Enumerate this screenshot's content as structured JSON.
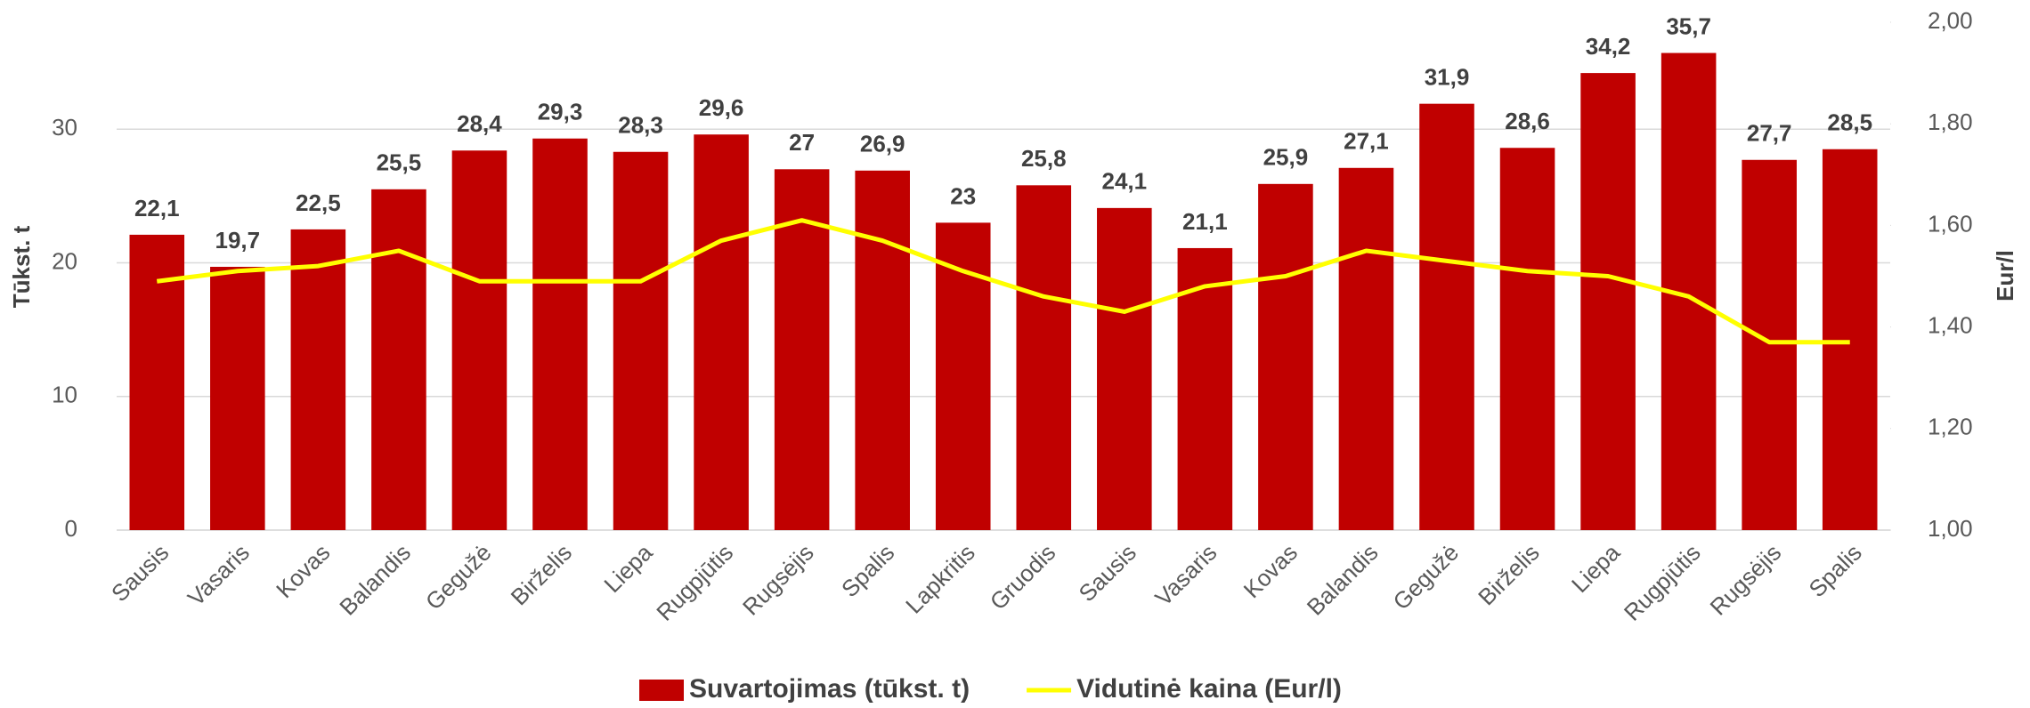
{
  "chart_data": {
    "type": "bar",
    "categories": [
      "Sausis",
      "Vasaris",
      "Kovas",
      "Balandis",
      "Gegužė",
      "Birželis",
      "Liepa",
      "Rugpjūtis",
      "Rugsėjis",
      "Spalis",
      "Lapkritis",
      "Gruodis",
      "Sausis",
      "Vasaris",
      "Kovas",
      "Balandis",
      "Gegužė",
      "Birželis",
      "Liepa",
      "Rugpjūtis",
      "Rugsėjis",
      "Spalis"
    ],
    "series": [
      {
        "name": "Suvartojimas (tūkst. t)",
        "type": "bar",
        "color": "#c00000",
        "values": [
          22.1,
          19.7,
          22.5,
          25.5,
          28.4,
          29.3,
          28.3,
          29.6,
          27,
          26.9,
          23,
          25.8,
          24.1,
          21.1,
          25.9,
          27.1,
          31.9,
          28.6,
          34.2,
          35.7,
          27.7,
          28.5
        ],
        "value_labels": [
          "22,1",
          "19,7",
          "22,5",
          "25,5",
          "28,4",
          "29,3",
          "28,3",
          "29,6",
          "27",
          "26,9",
          "23",
          "25,8",
          "24,1",
          "21,1",
          "25,9",
          "27,1",
          "31,9",
          "28,6",
          "34,2",
          "35,7",
          "27,7",
          "28,5"
        ]
      },
      {
        "name": "Vidutinė kaina (Eur/l)",
        "type": "line",
        "axis": "y2",
        "color": "#ffff00",
        "values": [
          1.49,
          1.51,
          1.52,
          1.55,
          1.49,
          1.49,
          1.49,
          1.57,
          1.61,
          1.57,
          1.51,
          1.46,
          1.43,
          1.48,
          1.5,
          1.55,
          1.53,
          1.51,
          1.5,
          1.46,
          1.37,
          1.37
        ]
      }
    ],
    "ylabel": "Tūkst. t",
    "y2label": "Eur/l",
    "ylim": [
      0,
      38
    ],
    "yticks": [
      0,
      10,
      20,
      30
    ],
    "y2lim": [
      1.0,
      2.0
    ],
    "y2ticks": [
      {
        "value": 1.0,
        "label": "1,00"
      },
      {
        "value": 1.2,
        "label": "1,20"
      },
      {
        "value": 1.4,
        "label": "1,40"
      },
      {
        "value": 1.6,
        "label": "1,60"
      },
      {
        "value": 1.8,
        "label": "1,80"
      },
      {
        "value": 2.0,
        "label": "2,00"
      }
    ],
    "grid": true,
    "legend": "bottom"
  }
}
